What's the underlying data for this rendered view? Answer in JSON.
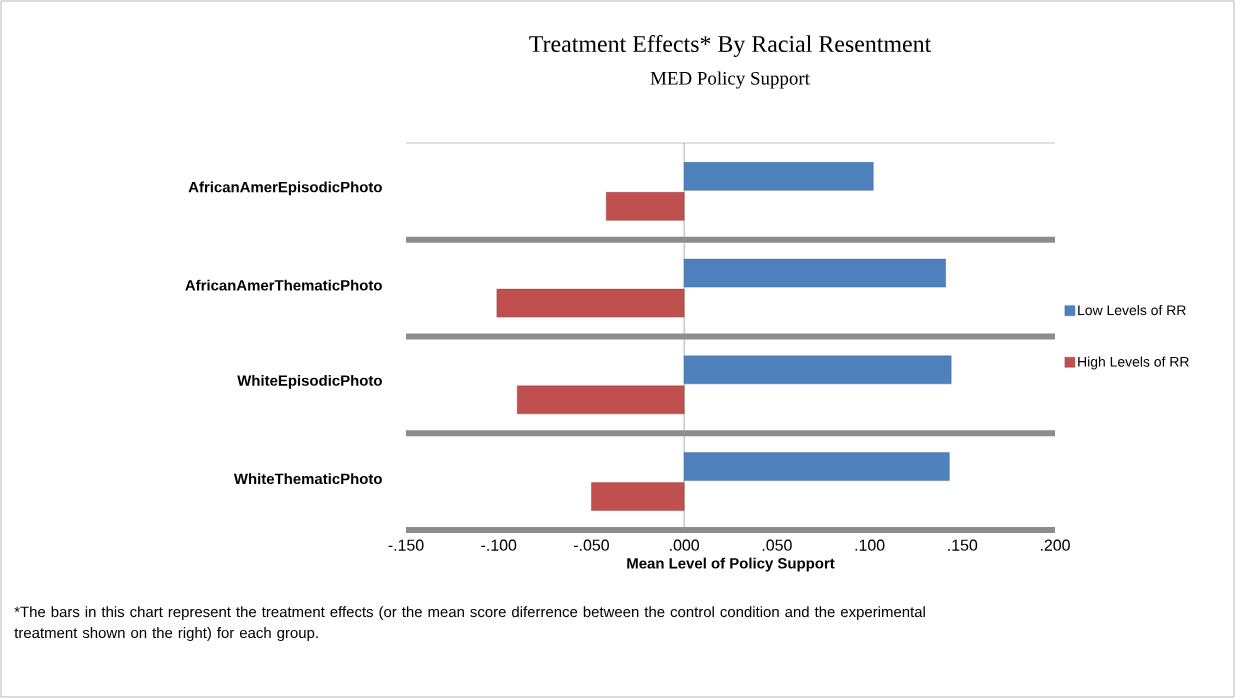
{
  "chart_data": {
    "type": "bar",
    "orientation": "horizontal",
    "title": "Treatment Effects* By Racial Resentment",
    "subtitle": "MED Policy Support",
    "xlabel": "Mean Level of Policy Support",
    "categories": [
      "AfricanAmerEpisodicPhoto",
      "AfricanAmerThematicPhoto",
      "WhiteEpisodicPhoto",
      "WhiteThematicPhoto"
    ],
    "series": [
      {
        "name": "Low Levels of RR",
        "color": "#4f81bd",
        "values": [
          0.102,
          0.141,
          0.144,
          0.143
        ]
      },
      {
        "name": "High Levels of RR",
        "color": "#c0504d",
        "values": [
          -0.042,
          -0.101,
          -0.09,
          -0.05
        ]
      }
    ],
    "xlim": [
      -0.15,
      0.2
    ],
    "xticks": [
      {
        "value": -0.15,
        "label": "-.150"
      },
      {
        "value": -0.1,
        "label": "-.100"
      },
      {
        "value": -0.05,
        "label": "-.050"
      },
      {
        "value": 0,
        "label": ".000"
      },
      {
        "value": 0.05,
        "label": ".050"
      },
      {
        "value": 0.1,
        "label": ".100"
      },
      {
        "value": 0.15,
        "label": ".150"
      },
      {
        "value": 0.2,
        "label": ".200"
      }
    ],
    "grid": "y",
    "legend": "right",
    "annotations": [
      "*The bars in this chart represent the treatment effects  (or the mean score diferrence between the control condition and the experimental treatment shown on the right) for each group."
    ]
  }
}
